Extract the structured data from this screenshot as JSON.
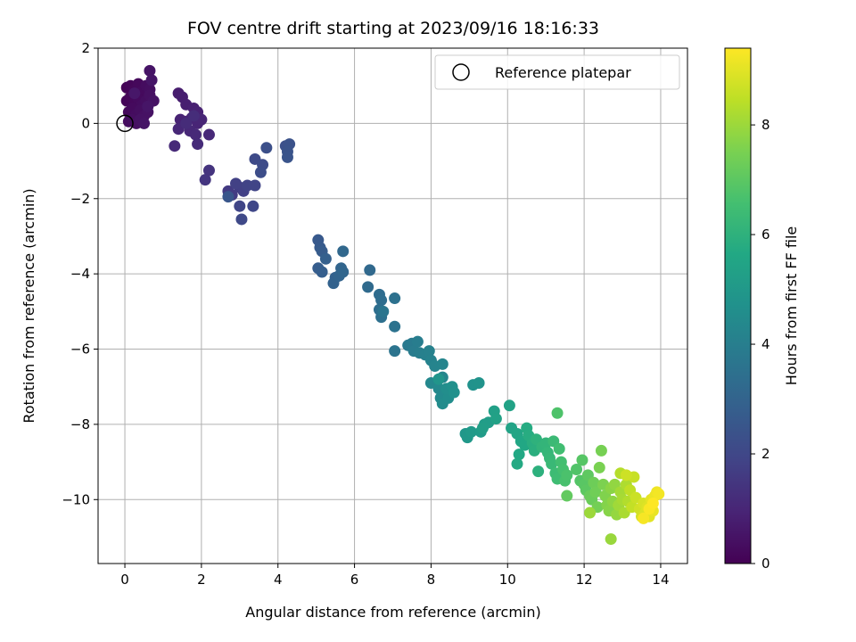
{
  "chart_data": {
    "type": "scatter",
    "title": "FOV centre drift starting at 2023/09/16 18:16:33",
    "xlabel": "Angular distance from reference (arcmin)",
    "ylabel": "Rotation from reference (arcmin)",
    "xlim": [
      -0.7,
      14.7
    ],
    "ylim": [
      -11.7,
      2.0
    ],
    "xticks": [
      0,
      2,
      4,
      6,
      8,
      10,
      12,
      14
    ],
    "yticks": [
      2,
      0,
      -2,
      -4,
      -6,
      -8,
      -10
    ],
    "grid": true,
    "legend": {
      "position": "top-right",
      "entries": [
        "Reference platepar"
      ]
    },
    "colorbar": {
      "label": "Hours from first FF file",
      "range": [
        0,
        9.4
      ],
      "ticks": [
        0,
        2,
        4,
        6,
        8
      ],
      "colormap": "viridis"
    },
    "reference_point": {
      "x": 0,
      "y": 0
    },
    "points": [
      [
        0.05,
        0.95,
        0.05
      ],
      [
        0.15,
        1.0,
        0.1
      ],
      [
        0.25,
        0.9,
        0.15
      ],
      [
        0.35,
        1.05,
        0.2
      ],
      [
        0.45,
        0.85,
        0.25
      ],
      [
        0.55,
        1.0,
        0.3
      ],
      [
        0.65,
        0.9,
        0.35
      ],
      [
        0.05,
        0.6,
        0.1
      ],
      [
        0.15,
        0.7,
        0.15
      ],
      [
        0.25,
        0.55,
        0.2
      ],
      [
        0.35,
        0.65,
        0.25
      ],
      [
        0.45,
        0.5,
        0.3
      ],
      [
        0.55,
        0.6,
        0.35
      ],
      [
        0.65,
        0.75,
        0.4
      ],
      [
        0.75,
        0.6,
        0.45
      ],
      [
        0.1,
        0.3,
        0.2
      ],
      [
        0.2,
        0.4,
        0.25
      ],
      [
        0.3,
        0.25,
        0.3
      ],
      [
        0.4,
        0.35,
        0.35
      ],
      [
        0.5,
        0.2,
        0.4
      ],
      [
        0.6,
        0.3,
        0.45
      ],
      [
        0.1,
        0.05,
        0.3
      ],
      [
        0.2,
        0.1,
        0.35
      ],
      [
        0.3,
        0.0,
        0.4
      ],
      [
        0.4,
        0.1,
        0.45
      ],
      [
        0.5,
        0.0,
        0.5
      ],
      [
        0.65,
        1.4,
        0.5
      ],
      [
        0.7,
        1.15,
        0.55
      ],
      [
        0.6,
        0.45,
        0.55
      ],
      [
        0.25,
        0.8,
        0.6
      ],
      [
        1.4,
        0.8,
        0.75
      ],
      [
        1.5,
        0.7,
        0.78
      ],
      [
        1.6,
        0.5,
        0.8
      ],
      [
        1.8,
        0.4,
        0.85
      ],
      [
        1.9,
        0.3,
        0.88
      ],
      [
        1.45,
        0.1,
        0.9
      ],
      [
        1.6,
        0.05,
        0.92
      ],
      [
        1.75,
        0.15,
        0.95
      ],
      [
        1.9,
        0.0,
        0.98
      ],
      [
        2.0,
        0.1,
        1.0
      ],
      [
        1.4,
        -0.15,
        1.02
      ],
      [
        1.7,
        -0.2,
        1.05
      ],
      [
        1.85,
        -0.3,
        1.08
      ],
      [
        2.2,
        -0.3,
        1.1
      ],
      [
        1.3,
        -0.6,
        1.12
      ],
      [
        1.9,
        -0.55,
        1.15
      ],
      [
        1.6,
        0.0,
        1.17
      ],
      [
        1.8,
        0.2,
        1.2
      ],
      [
        2.2,
        -1.25,
        1.4
      ],
      [
        2.1,
        -1.5,
        1.45
      ],
      [
        2.7,
        -1.8,
        1.6
      ],
      [
        2.8,
        -1.9,
        1.65
      ],
      [
        3.0,
        -1.7,
        1.7
      ],
      [
        3.1,
        -1.8,
        1.75
      ],
      [
        2.9,
        -1.6,
        1.8
      ],
      [
        3.2,
        -1.65,
        1.85
      ],
      [
        3.4,
        -1.65,
        1.9
      ],
      [
        3.0,
        -2.2,
        1.95
      ],
      [
        3.35,
        -2.2,
        2.0
      ],
      [
        3.05,
        -2.55,
        2.05
      ],
      [
        3.4,
        -0.95,
        2.1
      ],
      [
        3.6,
        -1.1,
        2.15
      ],
      [
        3.55,
        -1.3,
        2.2
      ],
      [
        3.7,
        -0.65,
        2.25
      ],
      [
        4.2,
        -0.6,
        2.3
      ],
      [
        4.3,
        -0.55,
        2.35
      ],
      [
        4.25,
        -0.75,
        2.4
      ],
      [
        4.25,
        -0.9,
        2.45
      ],
      [
        2.7,
        -1.95,
        2.5
      ],
      [
        5.05,
        -3.1,
        2.6
      ],
      [
        5.1,
        -3.3,
        2.65
      ],
      [
        5.15,
        -3.4,
        2.7
      ],
      [
        5.05,
        -3.85,
        2.75
      ],
      [
        5.15,
        -3.95,
        2.8
      ],
      [
        5.25,
        -3.6,
        2.85
      ],
      [
        5.5,
        -4.1,
        2.9
      ],
      [
        5.45,
        -4.25,
        2.95
      ],
      [
        5.6,
        -4.05,
        3.0
      ],
      [
        5.65,
        -3.85,
        3.05
      ],
      [
        5.7,
        -3.95,
        3.1
      ],
      [
        5.7,
        -3.4,
        3.15
      ],
      [
        6.4,
        -3.9,
        3.2
      ],
      [
        6.35,
        -4.35,
        3.25
      ],
      [
        6.65,
        -4.55,
        3.3
      ],
      [
        6.7,
        -4.7,
        3.35
      ],
      [
        6.65,
        -4.95,
        3.4
      ],
      [
        6.7,
        -5.15,
        3.45
      ],
      [
        7.05,
        -4.65,
        3.5
      ],
      [
        7.05,
        -5.4,
        3.55
      ],
      [
        7.05,
        -6.05,
        3.6
      ],
      [
        6.75,
        -5.0,
        3.65
      ],
      [
        7.4,
        -5.9,
        3.8
      ],
      [
        7.5,
        -5.85,
        3.85
      ],
      [
        7.55,
        -6.05,
        3.9
      ],
      [
        7.65,
        -5.8,
        3.95
      ],
      [
        7.7,
        -6.1,
        4.0
      ],
      [
        7.85,
        -6.15,
        4.05
      ],
      [
        7.95,
        -6.05,
        4.1
      ],
      [
        8.0,
        -6.3,
        4.15
      ],
      [
        8.1,
        -6.45,
        4.2
      ],
      [
        8.3,
        -6.4,
        4.25
      ],
      [
        8.3,
        -6.75,
        4.3
      ],
      [
        8.0,
        -6.9,
        4.35
      ],
      [
        8.2,
        -7.05,
        4.4
      ],
      [
        8.25,
        -7.3,
        4.45
      ],
      [
        8.3,
        -7.45,
        4.5
      ],
      [
        8.45,
        -7.3,
        4.55
      ],
      [
        8.4,
        -7.05,
        4.6
      ],
      [
        8.55,
        -7.0,
        4.65
      ],
      [
        8.6,
        -7.15,
        4.7
      ],
      [
        9.1,
        -6.95,
        4.75
      ],
      [
        9.25,
        -6.9,
        4.8
      ],
      [
        8.2,
        -6.8,
        4.85
      ],
      [
        8.9,
        -8.25,
        4.95
      ],
      [
        8.95,
        -8.35,
        5.0
      ],
      [
        9.05,
        -8.2,
        5.05
      ],
      [
        9.3,
        -8.2,
        5.1
      ],
      [
        9.4,
        -8.0,
        5.15
      ],
      [
        9.5,
        -7.95,
        5.2
      ],
      [
        9.35,
        -8.1,
        5.25
      ],
      [
        9.65,
        -7.65,
        5.3
      ],
      [
        9.7,
        -7.85,
        5.35
      ],
      [
        10.05,
        -7.5,
        5.4
      ],
      [
        10.1,
        -8.1,
        5.45
      ],
      [
        10.25,
        -8.25,
        5.5
      ],
      [
        10.35,
        -8.45,
        5.55
      ],
      [
        10.45,
        -8.55,
        5.6
      ],
      [
        10.3,
        -8.8,
        5.65
      ],
      [
        10.25,
        -9.05,
        5.7
      ],
      [
        10.5,
        -8.1,
        5.75
      ],
      [
        10.55,
        -8.3,
        5.8
      ],
      [
        10.65,
        -8.5,
        5.85
      ],
      [
        10.7,
        -8.7,
        5.9
      ],
      [
        10.8,
        -9.25,
        5.95
      ],
      [
        10.75,
        -8.4,
        6.0
      ],
      [
        10.9,
        -8.6,
        6.1
      ],
      [
        11.0,
        -8.5,
        6.15
      ],
      [
        11.05,
        -8.75,
        6.2
      ],
      [
        11.1,
        -8.9,
        6.25
      ],
      [
        11.15,
        -9.05,
        6.3
      ],
      [
        11.2,
        -8.45,
        6.35
      ],
      [
        11.25,
        -9.3,
        6.4
      ],
      [
        11.3,
        -9.45,
        6.45
      ],
      [
        11.35,
        -8.65,
        6.5
      ],
      [
        11.4,
        -9.0,
        6.55
      ],
      [
        11.45,
        -9.2,
        6.6
      ],
      [
        11.5,
        -9.5,
        6.65
      ],
      [
        11.55,
        -9.35,
        6.7
      ],
      [
        11.3,
        -7.7,
        6.75
      ],
      [
        11.8,
        -9.2,
        6.8
      ],
      [
        11.9,
        -9.5,
        6.85
      ],
      [
        11.95,
        -8.95,
        6.9
      ],
      [
        12.0,
        -9.6,
        6.95
      ],
      [
        12.05,
        -9.75,
        7.0
      ],
      [
        12.1,
        -9.35,
        7.05
      ],
      [
        11.55,
        -9.9,
        7.1
      ],
      [
        12.15,
        -9.9,
        7.2
      ],
      [
        12.2,
        -10.0,
        7.25
      ],
      [
        12.25,
        -9.55,
        7.3
      ],
      [
        12.3,
        -9.8,
        7.35
      ],
      [
        12.35,
        -10.2,
        7.4
      ],
      [
        12.45,
        -8.7,
        7.45
      ],
      [
        12.4,
        -9.15,
        7.5
      ],
      [
        12.5,
        -9.6,
        7.55
      ],
      [
        12.55,
        -9.9,
        7.6
      ],
      [
        12.6,
        -10.15,
        7.65
      ],
      [
        12.65,
        -10.3,
        7.7
      ],
      [
        12.7,
        -9.7,
        7.75
      ],
      [
        12.75,
        -10.05,
        7.8
      ],
      [
        12.8,
        -9.6,
        7.85
      ],
      [
        12.85,
        -10.4,
        7.9
      ],
      [
        12.7,
        -11.05,
        7.95
      ],
      [
        12.15,
        -10.35,
        8.0
      ],
      [
        12.9,
        -10.15,
        8.05
      ],
      [
        12.95,
        -9.8,
        8.1
      ],
      [
        13.0,
        -10.0,
        8.15
      ],
      [
        13.05,
        -10.35,
        8.2
      ],
      [
        13.1,
        -9.6,
        8.25
      ],
      [
        13.15,
        -10.05,
        8.3
      ],
      [
        12.95,
        -9.3,
        8.35
      ],
      [
        13.2,
        -9.75,
        8.5
      ],
      [
        13.25,
        -10.2,
        8.55
      ],
      [
        13.3,
        -9.4,
        8.6
      ],
      [
        13.35,
        -9.95,
        8.65
      ],
      [
        13.1,
        -9.35,
        8.7
      ],
      [
        13.45,
        -10.25,
        8.75
      ],
      [
        13.5,
        -10.45,
        8.8
      ],
      [
        13.55,
        -10.1,
        8.85
      ],
      [
        13.6,
        -10.35,
        8.9
      ],
      [
        13.65,
        -10.2,
        8.95
      ],
      [
        13.7,
        -10.45,
        9.0
      ],
      [
        13.75,
        -10.0,
        9.05
      ],
      [
        13.8,
        -10.3,
        9.1
      ],
      [
        13.85,
        -9.9,
        9.15
      ],
      [
        13.9,
        -9.8,
        9.2
      ],
      [
        13.95,
        -9.85,
        9.25
      ],
      [
        13.55,
        -10.5,
        9.3
      ],
      [
        13.7,
        -10.25,
        9.35
      ],
      [
        13.8,
        -10.1,
        9.4
      ]
    ]
  }
}
